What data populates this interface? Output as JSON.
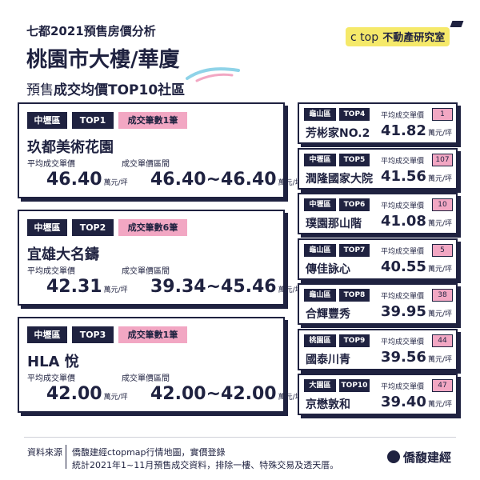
{
  "header": {
    "subtitle": "七都2021預售房價分析",
    "title_part1": "桃園市大樓",
    "title_part2": "/華廈",
    "caption_pre": "預售",
    "caption_main": "成交均價TOP10社區"
  },
  "brand": {
    "ctop": "c top",
    "institute": "不動產研究室"
  },
  "labels": {
    "avg_price": "平均成交單價",
    "price_range": "成交單價區間",
    "unit": "萬元/坪"
  },
  "top_cards": [
    {
      "district": "中壢區",
      "rank": "TOP1",
      "deals": "成交筆數1筆",
      "name": "玖都美術花園",
      "avg": "46.40",
      "range": "46.40~46.40"
    },
    {
      "district": "中壢區",
      "rank": "TOP2",
      "deals": "成交筆數6筆",
      "name": "宜雄大名鑄",
      "avg": "42.31",
      "range": "39.34~45.46"
    },
    {
      "district": "中壢區",
      "rank": "TOP3",
      "deals": "成交筆數1筆",
      "name": "HLA 悅",
      "avg": "42.00",
      "range": "42.00~42.00"
    }
  ],
  "right_cards": [
    {
      "district": "龜山區",
      "rank": "TOP4",
      "count": "1",
      "name": "芳彬家NO.2",
      "avg": "41.82"
    },
    {
      "district": "中壢區",
      "rank": "TOP5",
      "count": "107",
      "name": "潤隆國家大院",
      "avg": "41.56"
    },
    {
      "district": "中壢區",
      "rank": "TOP6",
      "count": "10",
      "name": "璞園那山階",
      "avg": "41.08"
    },
    {
      "district": "龜山區",
      "rank": "TOP7",
      "count": "5",
      "name": "傳佳詠心",
      "avg": "40.55"
    },
    {
      "district": "龜山區",
      "rank": "TOP8",
      "count": "38",
      "name": "合輝豐秀",
      "avg": "39.95"
    },
    {
      "district": "桃園區",
      "rank": "TOP9",
      "count": "44",
      "name": "國泰川青",
      "avg": "39.56"
    },
    {
      "district": "大園區",
      "rank": "TOP10",
      "count": "47",
      "name": "京懋敦和",
      "avg": "39.40"
    }
  ],
  "footer": {
    "source_label": "資料來源",
    "line1": "僑馥建經ctopmap行情地圖，實價登錄",
    "line2": "統計2021年1~11月預售成交資料，排除一樓、特殊交易及透天厝。",
    "logo_text": "僑馥建經"
  }
}
